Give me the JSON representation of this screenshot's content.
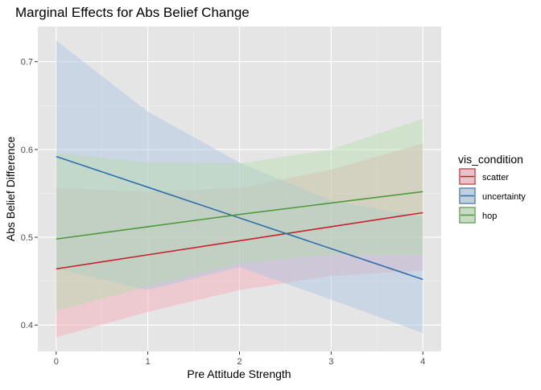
{
  "chart_data": {
    "type": "line",
    "title": "Marginal Effects for Abs Belief Change",
    "xlabel": "Pre Attitude Strength",
    "ylabel": "Abs Belief Difference",
    "xlim": [
      -0.2,
      4.2
    ],
    "ylim": [
      0.37,
      0.74
    ],
    "x_ticks": [
      0,
      1,
      2,
      3,
      4
    ],
    "x_tick_labels": [
      "0",
      "1",
      "2",
      "3",
      "4"
    ],
    "y_ticks": [
      0.4,
      0.5,
      0.6,
      0.7
    ],
    "y_tick_labels": [
      "0.4",
      "0.5",
      "0.6",
      "0.7"
    ],
    "grid": true,
    "legend": {
      "title": "vis_condition",
      "position": "right"
    },
    "x": [
      0,
      1,
      2,
      3,
      4
    ],
    "series": [
      {
        "name": "scatter",
        "color": "#c8202c",
        "fill": "#f4a9b5",
        "values": [
          0.464,
          0.48,
          0.496,
          0.512,
          0.528
        ],
        "lower": [
          0.386,
          0.415,
          0.44,
          0.456,
          0.462
        ],
        "upper": [
          0.556,
          0.552,
          0.556,
          0.577,
          0.607
        ]
      },
      {
        "name": "uncertainty",
        "color": "#2f6fab",
        "fill": "#a8c3e0",
        "values": [
          0.592,
          0.557,
          0.522,
          0.487,
          0.452
        ],
        "lower": [
          0.464,
          0.44,
          0.466,
          0.429,
          0.391
        ],
        "upper": [
          0.724,
          0.643,
          0.585,
          0.542,
          0.523
        ]
      },
      {
        "name": "hop",
        "color": "#4c9a3b",
        "fill": "#b5dbac",
        "values": [
          0.498,
          0.512,
          0.526,
          0.539,
          0.552
        ],
        "lower": [
          0.416,
          0.444,
          0.47,
          0.48,
          0.48
        ],
        "upper": [
          0.596,
          0.585,
          0.584,
          0.6,
          0.635
        ]
      }
    ]
  }
}
